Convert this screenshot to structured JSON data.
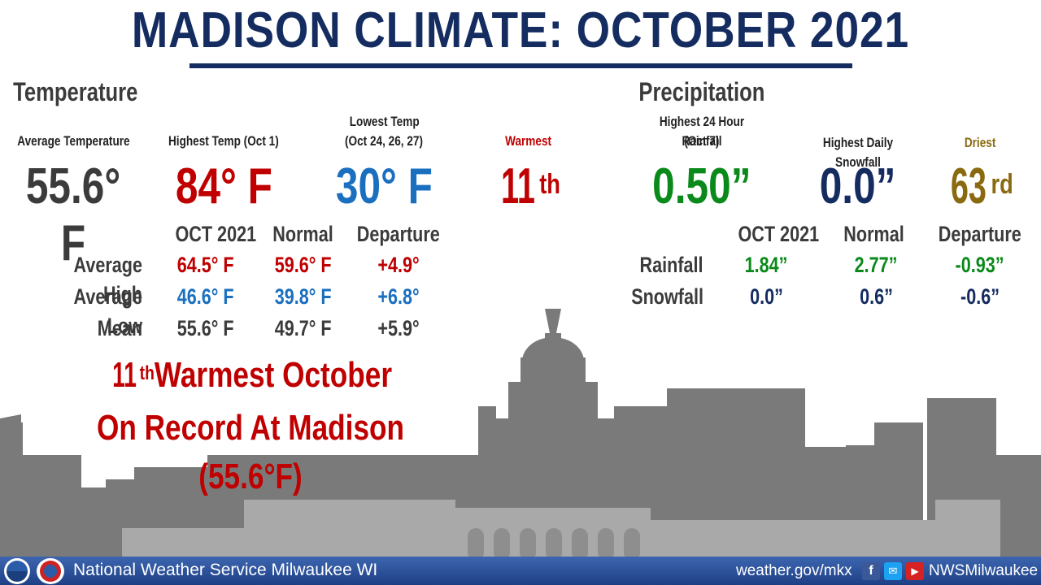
{
  "title": "MADISON CLIMATE: OCTOBER 2021",
  "temperature": {
    "heading": "Temperature",
    "avg_label": "Average Temperature",
    "avg_value": "55.6° F",
    "high_label": "Highest Temp (Oct 1)",
    "high_value": "84° F",
    "low_label_1": "Lowest Temp",
    "low_label_2": "(Oct 24, 26, 27)",
    "low_value": "30° F",
    "rank_label": "Warmest",
    "rank_num": "11",
    "rank_suffix": "th",
    "columns": [
      "OCT 2021",
      "Normal",
      "Departure"
    ],
    "rows": [
      {
        "label": "Average High",
        "oct": "64.5° F",
        "normal": "59.6° F",
        "departure": "+4.9°"
      },
      {
        "label": "Average Low",
        "oct": "46.6° F",
        "normal": "39.8° F",
        "departure": "+6.8°"
      },
      {
        "label": "Mean",
        "oct": "55.6° F",
        "normal": "49.7° F",
        "departure": "+5.9°"
      }
    ],
    "record_num": "11",
    "record_suffix": "th",
    "record_line1": " Warmest October",
    "record_line2": "On Record At Madison (55.6°F)"
  },
  "precipitation": {
    "heading": "Precipitation",
    "rain_label_1": "Highest 24 Hour Rainfall",
    "rain_label_2": "(Oct 7)",
    "rain_value": "0.50”",
    "snow_label": "Highest Daily Snowfall",
    "snow_value": "0.0”",
    "rank_label": "Driest",
    "rank_num": "63",
    "rank_suffix": "rd",
    "columns": [
      "OCT 2021",
      "Normal",
      "Departure"
    ],
    "rows": [
      {
        "label": "Rainfall",
        "oct": "1.84”",
        "normal": "2.77”",
        "departure": "-0.93”"
      },
      {
        "label": "Snowfall",
        "oct": "0.0”",
        "normal": "0.6”",
        "departure": "-0.6”"
      }
    ]
  },
  "footer": {
    "org": "National Weather Service Milwaukee WI",
    "url": "weather.gov/mkx",
    "handle": "NWSMilwaukee",
    "logos": [
      "noaa-logo",
      "nws-logo"
    ],
    "social_icons": [
      "facebook-icon",
      "twitter-icon",
      "youtube-icon"
    ]
  },
  "colors": {
    "title": "#142c60",
    "warm": "#c00000",
    "cool": "#1a6fbf",
    "rain": "#0a8a1a",
    "snow": "#142c60",
    "dry": "#8a6a10"
  }
}
